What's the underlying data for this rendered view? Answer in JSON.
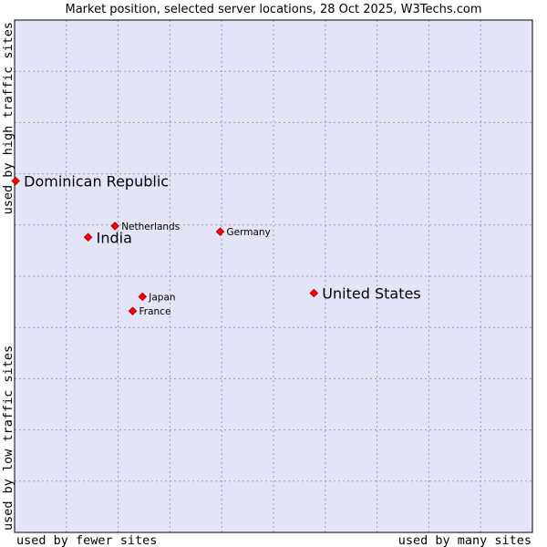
{
  "colors": {
    "plot_background": "#e5e5fa",
    "plot_border": "#000000",
    "marker": "#ff0000",
    "marker_outline": "#a00000"
  },
  "chart_data": {
    "type": "scatter",
    "title": "Market position, selected server locations, 28 Oct 2025, W3Techs.com",
    "xlabel_low": "used by fewer sites",
    "xlabel_high": "used by many sites",
    "ylabel_low": "used by low traffic sites",
    "ylabel_high": "used by high traffic sites",
    "xlim": [
      0,
      10
    ],
    "ylim": [
      0,
      10
    ],
    "grid": true,
    "grid_divisions": 10,
    "points": [
      {
        "name": "Dominican Republic",
        "x": 0.02,
        "y": 6.86,
        "size": "large"
      },
      {
        "name": "India",
        "x": 1.42,
        "y": 5.76,
        "size": "large"
      },
      {
        "name": "Netherlands",
        "x": 1.94,
        "y": 5.98,
        "size": "small"
      },
      {
        "name": "Germany",
        "x": 3.97,
        "y": 5.87,
        "size": "small"
      },
      {
        "name": "United States",
        "x": 5.78,
        "y": 4.67,
        "size": "large"
      },
      {
        "name": "Japan",
        "x": 2.47,
        "y": 4.6,
        "size": "small"
      },
      {
        "name": "France",
        "x": 2.28,
        "y": 4.32,
        "size": "small"
      }
    ]
  }
}
